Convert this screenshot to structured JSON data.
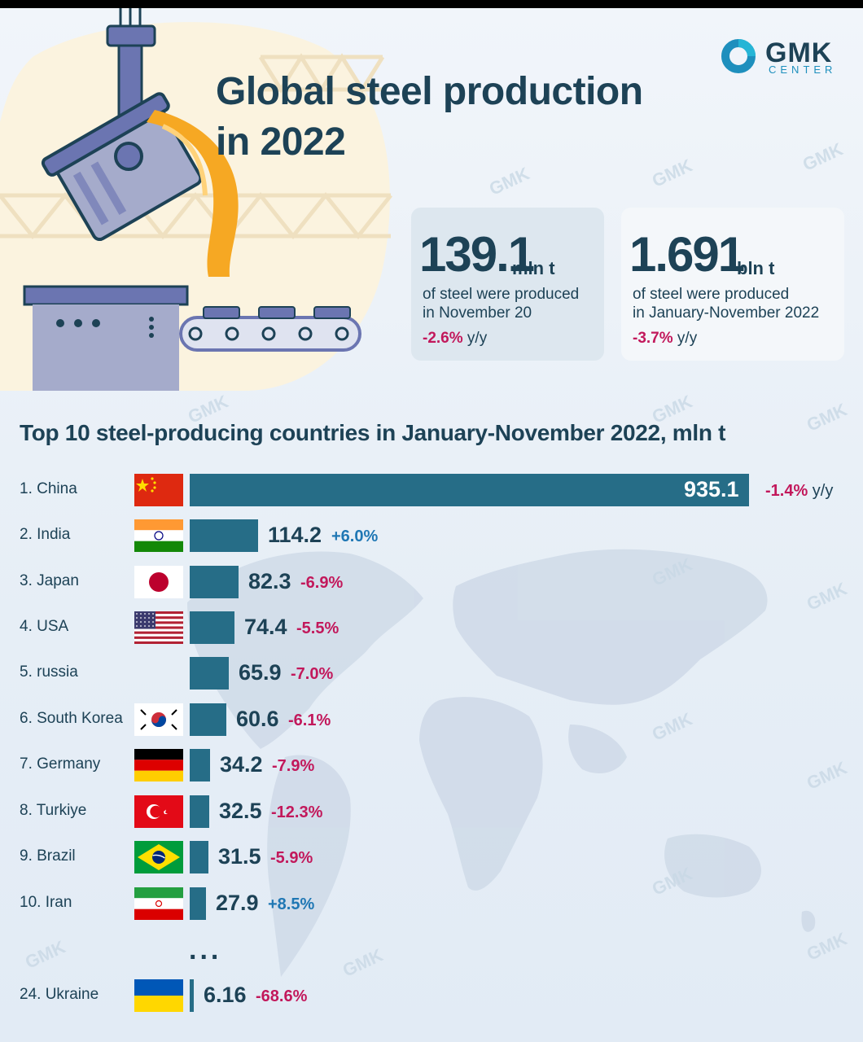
{
  "header": {
    "title_line1": "Global steel production",
    "title_line2": "in 2022",
    "logo_text": "GMK",
    "logo_sub": "CENTER"
  },
  "stats": [
    {
      "value": "139.1",
      "unit": "mln t",
      "desc_line1": "of steel were produced",
      "desc_line2": "in November 20",
      "change": "-2.6%",
      "change_suffix": "y/y"
    },
    {
      "value": "1.691",
      "unit": "bln t",
      "desc_line1": "of steel were produced",
      "desc_line2": "in January-November 2022",
      "change": "-3.7%",
      "change_suffix": "y/y"
    }
  ],
  "watermark": "GMK",
  "ellipsis": "...",
  "colors": {
    "bar": "#266d87",
    "negative": "#c2185b",
    "positive": "#1f77b4",
    "text": "#1d4256"
  },
  "chart_data": {
    "type": "bar",
    "title": "Top 10 steel-producing countries in January-November 2022, mln t",
    "orientation": "horizontal",
    "categories": [
      "1. China",
      "2. India",
      "3. Japan",
      "4. USA",
      "5. russia",
      "6. South Korea",
      "7. Germany",
      "8. Turkiye",
      "9. Brazil",
      "10. Iran",
      "24. Ukraine"
    ],
    "values": [
      935.1,
      114.2,
      82.3,
      74.4,
      65.9,
      60.6,
      34.2,
      32.5,
      31.5,
      27.9,
      6.16
    ],
    "value_labels": [
      "935.1",
      "114.2",
      "82.3",
      "74.4",
      "65.9",
      "60.6",
      "34.2",
      "32.5",
      "31.5",
      "27.9",
      "6.16"
    ],
    "changes": [
      "-1.4%",
      "+6.0%",
      "-6.9%",
      "-5.5%",
      "-7.0%",
      "-6.1%",
      "-7.9%",
      "-12.3%",
      "-5.9%",
      "+8.5%",
      "-68.6%"
    ],
    "first_change_suffix": "y/y",
    "flags": [
      "china",
      "india",
      "japan",
      "usa",
      "",
      "south-korea",
      "germany",
      "turkiye",
      "brazil",
      "iran",
      "ukraine"
    ]
  }
}
